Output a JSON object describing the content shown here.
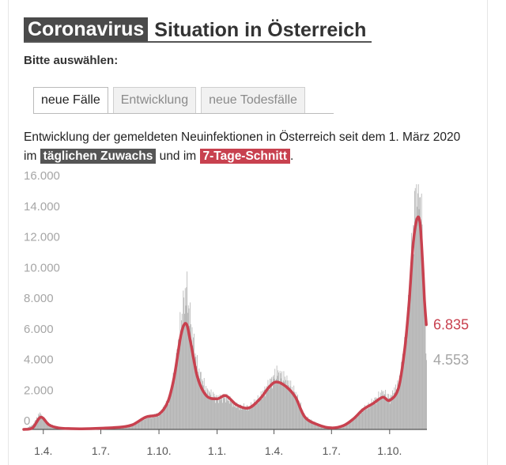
{
  "header": {
    "kicker": "Coronavirus",
    "title": "Situation in Österreich"
  },
  "prompt": "Bitte auswählen:",
  "tabs": [
    {
      "label": "neue Fälle",
      "active": true
    },
    {
      "label": "Entwicklung",
      "active": false
    },
    {
      "label": "neue Todesfälle",
      "active": false
    }
  ],
  "description": {
    "part1": "Entwicklung der gemeldeten Neuinfektionen in Österreich seit dem 1. März 2020 im",
    "tag_daily": "täglichen Zuwachs",
    "part2": "und im",
    "tag_avg": "7-Tage-Schnitt",
    "part3": "."
  },
  "colors": {
    "bar": "#b3b3b3",
    "avg_line": "#c8414f",
    "tag_gray": "#555555",
    "tag_red": "#c8414f"
  },
  "chart_data": {
    "type": "bar",
    "title": "",
    "xlabel": "",
    "ylabel": "",
    "ylim": [
      0,
      16000
    ],
    "yticks": [
      0,
      2000,
      4000,
      6000,
      8000,
      10000,
      12000,
      14000,
      16000
    ],
    "ytick_labels": [
      "0",
      "2.000",
      "4.000",
      "6.000",
      "8.000",
      "10.000",
      "12.000",
      "14.000",
      "16.000"
    ],
    "x_domain": [
      "2020-03-01",
      "2021-11-29"
    ],
    "xticks": [
      {
        "date": "2020-04-01",
        "label": "1.4."
      },
      {
        "date": "2020-07-01",
        "label": "1.7."
      },
      {
        "date": "2020-10-01",
        "label": "1.10."
      },
      {
        "date": "2021-01-01",
        "label": "1.1."
      },
      {
        "date": "2021-04-01",
        "label": "1.4."
      },
      {
        "date": "2021-07-01",
        "label": "1.7."
      },
      {
        "date": "2021-10-01",
        "label": "1.10."
      }
    ],
    "series": [
      {
        "name": "täglichen Zuwachs",
        "kind": "bars",
        "last_value": 4553,
        "last_label": "4.553",
        "dates": [
          "2020-03-01",
          "2020-03-15",
          "2020-03-26",
          "2020-04-05",
          "2020-04-20",
          "2020-05-10",
          "2020-06-01",
          "2020-07-01",
          "2020-08-01",
          "2020-08-20",
          "2020-09-10",
          "2020-10-01",
          "2020-10-15",
          "2020-10-25",
          "2020-11-05",
          "2020-11-13",
          "2020-11-20",
          "2020-12-01",
          "2020-12-15",
          "2021-01-01",
          "2021-01-15",
          "2021-02-01",
          "2021-02-20",
          "2021-03-10",
          "2021-03-25",
          "2021-04-05",
          "2021-04-20",
          "2021-05-05",
          "2021-05-20",
          "2021-06-10",
          "2021-07-01",
          "2021-07-20",
          "2021-08-05",
          "2021-08-20",
          "2021-09-05",
          "2021-09-20",
          "2021-10-01",
          "2021-10-15",
          "2021-10-25",
          "2021-11-01",
          "2021-11-07",
          "2021-11-13",
          "2021-11-18",
          "2021-11-22",
          "2021-11-25",
          "2021-11-28"
        ],
        "values": [
          0,
          300,
          1050,
          500,
          150,
          60,
          40,
          80,
          150,
          250,
          800,
          1000,
          1800,
          3500,
          7200,
          9200,
          6800,
          3900,
          2500,
          2000,
          2100,
          1500,
          1400,
          2100,
          3000,
          3700,
          3200,
          2300,
          800,
          300,
          100,
          250,
          700,
          1300,
          1800,
          2400,
          2000,
          3000,
          5500,
          9000,
          13000,
          16200,
          15000,
          12000,
          7500,
          4553
        ]
      },
      {
        "name": "7-Tage-Schnitt",
        "kind": "line",
        "last_value": 6835,
        "last_label": "6.835",
        "dates": [
          "2020-03-01",
          "2020-03-15",
          "2020-03-28",
          "2020-04-10",
          "2020-04-25",
          "2020-05-15",
          "2020-06-01",
          "2020-07-01",
          "2020-08-01",
          "2020-08-20",
          "2020-09-10",
          "2020-10-01",
          "2020-10-15",
          "2020-10-25",
          "2020-11-05",
          "2020-11-13",
          "2020-11-20",
          "2020-12-01",
          "2020-12-15",
          "2021-01-01",
          "2021-01-15",
          "2021-02-01",
          "2021-02-20",
          "2021-03-10",
          "2021-03-25",
          "2021-04-05",
          "2021-04-20",
          "2021-05-05",
          "2021-05-20",
          "2021-06-10",
          "2021-07-01",
          "2021-07-20",
          "2021-08-05",
          "2021-08-20",
          "2021-09-05",
          "2021-09-20",
          "2021-10-01",
          "2021-10-15",
          "2021-10-25",
          "2021-11-01",
          "2021-11-07",
          "2021-11-13",
          "2021-11-18",
          "2021-11-22",
          "2021-11-25",
          "2021-11-28"
        ],
        "values": [
          0,
          100,
          800,
          300,
          100,
          50,
          40,
          80,
          150,
          300,
          800,
          1000,
          1800,
          3400,
          6200,
          6900,
          5700,
          3400,
          2200,
          2000,
          2200,
          1600,
          1400,
          2000,
          2800,
          3100,
          2800,
          2100,
          800,
          300,
          100,
          250,
          700,
          1300,
          1700,
          2100,
          1900,
          2700,
          5300,
          8400,
          12000,
          13700,
          13500,
          11000,
          8500,
          6835
        ]
      }
    ]
  }
}
